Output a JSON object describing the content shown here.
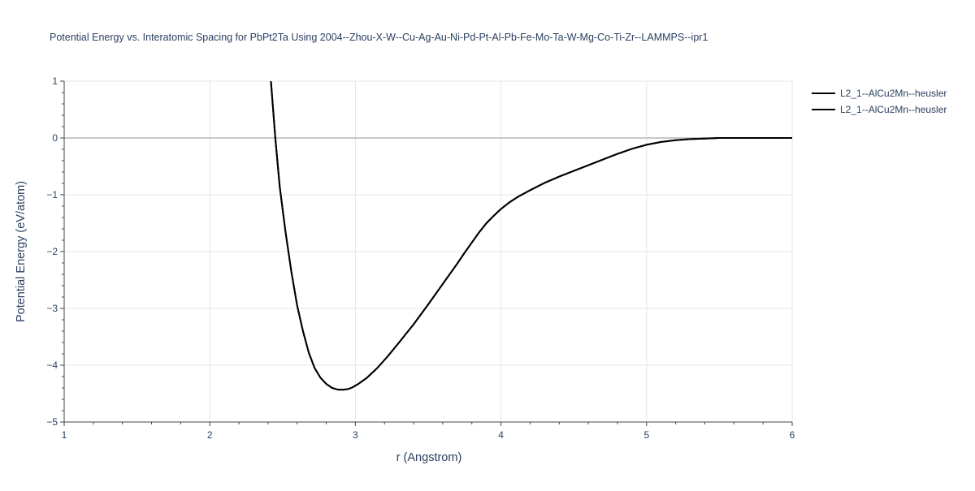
{
  "chart_data": {
    "type": "line",
    "title": "Potential Energy vs. Interatomic Spacing for PbPt2Ta Using 2004--Zhou-X-W--Cu-Ag-Au-Ni-Pd-Pt-Al-Pb-Fe-Mo-Ta-W-Mg-Co-Ti-Zr--LAMMPS--ipr1",
    "xlabel": "r (Angstrom)",
    "ylabel": "Potential Energy (eV/atom)",
    "xlim": [
      1,
      6
    ],
    "ylim": [
      -5,
      1
    ],
    "xticks": [
      1,
      2,
      3,
      4,
      5,
      6
    ],
    "xtick_labels": [
      "1",
      "2",
      "3",
      "4",
      "5",
      "6"
    ],
    "yticks": [
      -5,
      -4,
      -3,
      -2,
      -1,
      0,
      1
    ],
    "ytick_labels": [
      "−5",
      "−4",
      "−3",
      "−2",
      "−1",
      "0",
      "1"
    ],
    "grid": true,
    "legend_position": "top-right",
    "colors": {
      "grid": "#e5e5e5",
      "zeroline": "#c8c8c8",
      "axis": "#444444",
      "text": "#2a3f5f",
      "series": "#000000"
    },
    "series": [
      {
        "name": "L2_1--AlCu2Mn--heusler",
        "color": "#000000",
        "x": [
          2.42,
          2.45,
          2.48,
          2.52,
          2.56,
          2.6,
          2.64,
          2.68,
          2.72,
          2.76,
          2.8,
          2.84,
          2.88,
          2.92,
          2.95,
          2.98,
          3.02,
          3.08,
          3.15,
          3.22,
          3.3,
          3.4,
          3.5,
          3.6,
          3.7,
          3.75,
          3.8,
          3.85,
          3.9,
          3.95,
          4.0,
          4.06,
          4.12,
          4.2,
          4.3,
          4.4,
          4.5,
          4.6,
          4.7,
          4.8,
          4.9,
          5.0,
          5.1,
          5.2,
          5.3,
          5.4,
          5.5,
          5.7,
          6.0
        ],
        "y": [
          1.0,
          0.0,
          -0.85,
          -1.65,
          -2.35,
          -2.95,
          -3.4,
          -3.78,
          -4.05,
          -4.22,
          -4.33,
          -4.4,
          -4.43,
          -4.43,
          -4.42,
          -4.39,
          -4.33,
          -4.22,
          -4.05,
          -3.85,
          -3.6,
          -3.28,
          -2.93,
          -2.57,
          -2.21,
          -2.02,
          -1.84,
          -1.66,
          -1.5,
          -1.37,
          -1.25,
          -1.13,
          -1.03,
          -0.92,
          -0.79,
          -0.68,
          -0.58,
          -0.48,
          -0.38,
          -0.28,
          -0.19,
          -0.12,
          -0.07,
          -0.04,
          -0.02,
          -0.01,
          0.0,
          0.0,
          0.0
        ]
      },
      {
        "name": "L2_1--AlCu2Mn--heusler",
        "color": "#000000",
        "x": [
          2.42,
          2.45,
          2.48,
          2.52,
          2.56,
          2.6,
          2.64,
          2.68,
          2.72,
          2.76,
          2.8,
          2.84,
          2.88,
          2.92,
          2.95,
          2.98,
          3.02,
          3.08,
          3.15,
          3.22,
          3.3,
          3.4,
          3.5,
          3.6,
          3.7,
          3.75,
          3.8,
          3.85,
          3.9,
          3.95,
          4.0,
          4.06,
          4.12,
          4.2,
          4.3,
          4.4,
          4.5,
          4.6,
          4.7,
          4.8,
          4.9,
          5.0,
          5.1,
          5.2,
          5.3,
          5.4,
          5.5,
          5.7,
          6.0
        ],
        "y": [
          1.0,
          0.0,
          -0.85,
          -1.65,
          -2.35,
          -2.95,
          -3.4,
          -3.78,
          -4.05,
          -4.22,
          -4.33,
          -4.4,
          -4.43,
          -4.43,
          -4.42,
          -4.39,
          -4.33,
          -4.22,
          -4.05,
          -3.85,
          -3.6,
          -3.28,
          -2.93,
          -2.57,
          -2.21,
          -2.02,
          -1.84,
          -1.66,
          -1.5,
          -1.37,
          -1.25,
          -1.13,
          -1.03,
          -0.92,
          -0.79,
          -0.68,
          -0.58,
          -0.48,
          -0.38,
          -0.28,
          -0.19,
          -0.12,
          -0.07,
          -0.04,
          -0.02,
          -0.01,
          0.0,
          0.0,
          0.0
        ]
      }
    ]
  }
}
